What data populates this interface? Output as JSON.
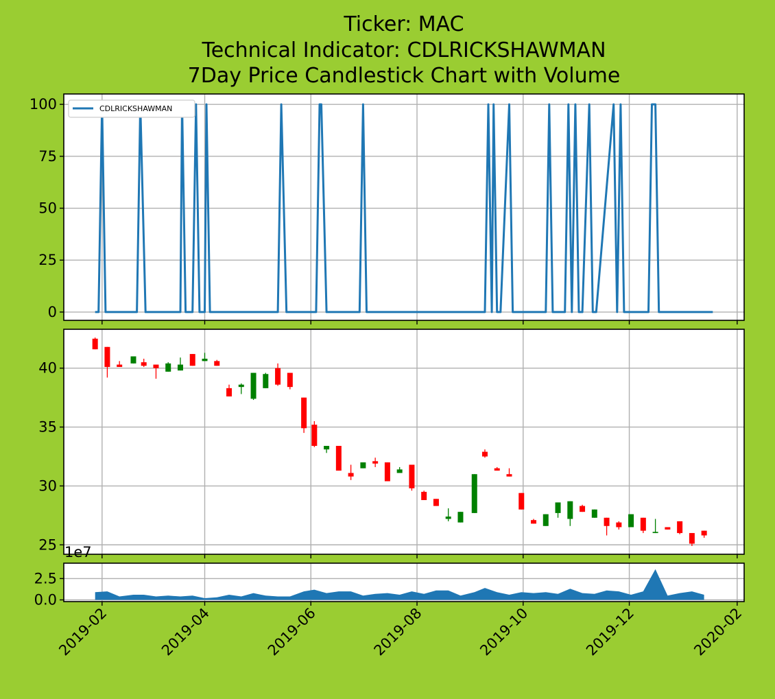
{
  "title": {
    "line1": "Ticker: MAC",
    "line2": "Technical Indicator: CDLRICKSHAWMAN",
    "line3": "7Day Price Candlestick Chart with Volume"
  },
  "colors": {
    "background": "#9acd32",
    "line": "#1f77b4",
    "up": "#008000",
    "down": "#ff0000",
    "volume": "#1f77b4"
  },
  "chart_data": [
    {
      "type": "line",
      "legend": "CDLRICKSHAWMAN",
      "legend_position": "top-left",
      "grid": true,
      "ylim": [
        -4,
        105
      ],
      "yticks": [
        0,
        25,
        50,
        75,
        100
      ],
      "x": [
        "2019-01-28",
        "2019-01-30",
        "2019-02-01",
        "2019-02-03",
        "2019-02-06",
        "2019-02-21",
        "2019-02-23",
        "2019-02-26",
        "2019-03-18",
        "2019-03-19",
        "2019-03-21",
        "2019-03-25",
        "2019-03-27",
        "2019-03-29",
        "2019-04-01",
        "2019-04-02",
        "2019-04-04",
        "2019-05-13",
        "2019-05-15",
        "2019-05-18",
        "2019-06-04",
        "2019-06-06",
        "2019-06-07",
        "2019-06-10",
        "2019-06-29",
        "2019-07-01",
        "2019-07-03",
        "2019-09-09",
        "2019-09-11",
        "2019-09-13",
        "2019-09-14",
        "2019-09-16",
        "2019-09-18",
        "2019-09-23",
        "2019-09-25",
        "2019-10-14",
        "2019-10-16",
        "2019-10-18",
        "2019-10-25",
        "2019-10-27",
        "2019-10-29",
        "2019-10-31",
        "2019-11-02",
        "2019-11-04",
        "2019-11-08",
        "2019-11-10",
        "2019-11-12",
        "2019-11-22",
        "2019-11-24",
        "2019-11-26",
        "2019-11-28",
        "2019-12-02",
        "2019-12-12",
        "2019-12-14",
        "2019-12-16",
        "2019-12-18",
        "2020-01-18"
      ],
      "y": [
        0,
        0,
        100,
        0,
        0,
        0,
        100,
        0,
        0,
        100,
        0,
        0,
        100,
        0,
        0,
        100,
        0,
        0,
        100,
        0,
        0,
        100,
        100,
        0,
        0,
        100,
        0,
        0,
        100,
        0,
        100,
        0,
        0,
        100,
        0,
        0,
        100,
        0,
        0,
        100,
        0,
        100,
        0,
        0,
        100,
        0,
        0,
        100,
        0,
        100,
        0,
        0,
        0,
        100,
        100,
        0,
        0
      ]
    },
    {
      "type": "candlestick",
      "grid": true,
      "ylim": [
        24.2,
        43.3
      ],
      "yticks": [
        25,
        30,
        35,
        40
      ],
      "x": [
        "2019-01-28",
        "2019-02-04",
        "2019-02-11",
        "2019-02-19",
        "2019-02-25",
        "2019-03-04",
        "2019-03-11",
        "2019-03-18",
        "2019-03-25",
        "2019-04-01",
        "2019-04-08",
        "2019-04-15",
        "2019-04-22",
        "2019-04-29",
        "2019-05-06",
        "2019-05-13",
        "2019-05-20",
        "2019-05-28",
        "2019-06-03",
        "2019-06-10",
        "2019-06-17",
        "2019-06-24",
        "2019-07-01",
        "2019-07-08",
        "2019-07-15",
        "2019-07-22",
        "2019-07-29",
        "2019-08-05",
        "2019-08-12",
        "2019-08-19",
        "2019-08-26",
        "2019-09-03",
        "2019-09-09",
        "2019-09-16",
        "2019-09-23",
        "2019-09-30",
        "2019-10-07",
        "2019-10-14",
        "2019-10-21",
        "2019-10-28",
        "2019-11-04",
        "2019-11-11",
        "2019-11-18",
        "2019-11-25",
        "2019-12-02",
        "2019-12-09",
        "2019-12-16",
        "2019-12-23",
        "2019-12-30",
        "2020-01-06",
        "2020-01-13"
      ],
      "open": [
        42.5,
        41.8,
        40.3,
        40.4,
        40.5,
        40.3,
        39.7,
        39.8,
        41.2,
        40.6,
        40.6,
        38.3,
        38.4,
        37.4,
        38.3,
        40.0,
        39.6,
        37.5,
        35.2,
        33.1,
        33.4,
        31.1,
        31.5,
        32.1,
        32.0,
        31.1,
        31.8,
        29.5,
        28.9,
        27.2,
        26.9,
        27.7,
        32.9,
        31.5,
        31.0,
        29.4,
        27.1,
        26.6,
        27.7,
        27.2,
        28.3,
        27.3,
        27.3,
        26.9,
        26.5,
        27.3,
        26.0,
        26.5,
        27.0,
        26.0,
        26.2
      ],
      "close": [
        41.6,
        40.1,
        40.1,
        41.0,
        40.2,
        40.0,
        40.4,
        40.3,
        40.2,
        40.8,
        40.2,
        37.6,
        38.6,
        39.6,
        39.5,
        38.6,
        38.4,
        34.9,
        33.4,
        33.4,
        31.3,
        30.8,
        32.0,
        31.9,
        30.4,
        31.4,
        29.8,
        28.8,
        28.3,
        27.4,
        27.8,
        31.0,
        32.5,
        31.3,
        30.8,
        28.0,
        26.8,
        27.6,
        28.6,
        28.7,
        27.8,
        28.0,
        26.6,
        26.5,
        27.6,
        26.2,
        26.1,
        26.3,
        26.0,
        25.1,
        25.8
      ],
      "high": [
        42.6,
        41.8,
        40.6,
        41.0,
        40.8,
        40.3,
        40.5,
        40.9,
        41.2,
        41.3,
        40.7,
        38.6,
        38.7,
        39.6,
        39.6,
        40.4,
        39.6,
        37.5,
        35.5,
        33.4,
        33.4,
        31.8,
        32.0,
        32.4,
        32.0,
        31.6,
        31.8,
        29.6,
        28.9,
        28.1,
        27.8,
        31.0,
        33.1,
        31.6,
        31.5,
        29.4,
        27.2,
        27.6,
        28.6,
        28.7,
        28.4,
        28.0,
        27.3,
        27.0,
        27.6,
        27.3,
        27.2,
        26.5,
        27.0,
        26.0,
        26.2
      ],
      "low": [
        41.6,
        39.2,
        40.1,
        40.4,
        40.1,
        39.1,
        39.7,
        39.8,
        40.2,
        40.6,
        40.2,
        37.6,
        37.8,
        37.3,
        38.3,
        38.5,
        38.2,
        34.5,
        33.3,
        32.8,
        31.3,
        30.5,
        31.5,
        31.6,
        30.4,
        31.1,
        29.6,
        28.8,
        28.3,
        27.0,
        26.9,
        27.7,
        32.4,
        31.3,
        30.8,
        28.0,
        26.8,
        26.6,
        27.3,
        26.6,
        27.8,
        27.3,
        25.8,
        26.3,
        26.5,
        26.0,
        26.0,
        26.3,
        25.9,
        24.9,
        25.6
      ]
    },
    {
      "type": "area",
      "grid": true,
      "ylim": [
        -0.2,
        4.3
      ],
      "yticks": [
        0.0,
        2.5
      ],
      "ytick_labels": [
        "0.0",
        "2.5"
      ],
      "scale_label": "1e7",
      "xlim": [
        "2019-01-10",
        "2020-02-05"
      ],
      "xticks": [
        "2019-02",
        "2019-04",
        "2019-06",
        "2019-08",
        "2019-10",
        "2019-12",
        "2020-02"
      ],
      "x": [
        "2019-01-28",
        "2019-02-04",
        "2019-02-11",
        "2019-02-19",
        "2019-02-25",
        "2019-03-04",
        "2019-03-11",
        "2019-03-18",
        "2019-03-25",
        "2019-04-01",
        "2019-04-08",
        "2019-04-15",
        "2019-04-22",
        "2019-04-29",
        "2019-05-06",
        "2019-05-13",
        "2019-05-20",
        "2019-05-28",
        "2019-06-03",
        "2019-06-10",
        "2019-06-17",
        "2019-06-24",
        "2019-07-01",
        "2019-07-08",
        "2019-07-15",
        "2019-07-22",
        "2019-07-29",
        "2019-08-05",
        "2019-08-12",
        "2019-08-19",
        "2019-08-26",
        "2019-09-03",
        "2019-09-09",
        "2019-09-16",
        "2019-09-23",
        "2019-09-30",
        "2019-10-07",
        "2019-10-14",
        "2019-10-21",
        "2019-10-28",
        "2019-11-04",
        "2019-11-11",
        "2019-11-18",
        "2019-11-25",
        "2019-12-02",
        "2019-12-09",
        "2019-12-16",
        "2019-12-23",
        "2019-12-30",
        "2020-01-06",
        "2020-01-13"
      ],
      "values": [
        0.9,
        1.0,
        0.4,
        0.6,
        0.6,
        0.4,
        0.5,
        0.4,
        0.5,
        0.2,
        0.3,
        0.6,
        0.4,
        0.8,
        0.5,
        0.4,
        0.4,
        1.0,
        1.2,
        0.8,
        1.0,
        1.0,
        0.5,
        0.7,
        0.8,
        0.6,
        1.0,
        0.7,
        1.1,
        1.1,
        0.5,
        0.9,
        1.4,
        0.9,
        0.6,
        0.9,
        0.8,
        0.9,
        0.7,
        1.3,
        0.8,
        0.7,
        1.1,
        1.0,
        0.6,
        1.0,
        3.6,
        0.5,
        0.8,
        1.0,
        0.6
      ]
    }
  ]
}
